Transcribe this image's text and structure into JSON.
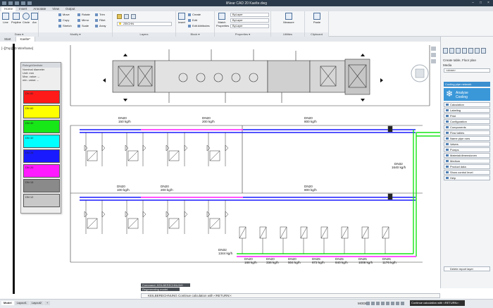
{
  "app": {
    "title": "liNear CAD 20   Kaelte.dwg"
  },
  "menu_tabs": [
    "Home",
    "Insert",
    "Annotate",
    "View",
    "Output"
  ],
  "ribbon": {
    "draw": {
      "group_label": "Draw ▾",
      "line": "Line",
      "polyline": "Polyline",
      "circle": "Circle",
      "arc": "Arc"
    },
    "modify": {
      "group_label": "Modify ▾",
      "move": "Move",
      "copy": "Copy",
      "stretch": "Stretch",
      "rotate": "Rotate",
      "mirror": "Mirror",
      "scale": "Scale",
      "trim": "Trim",
      "fillet": "Fillet",
      "array": "Array"
    },
    "layers": {
      "group_label": "Layers",
      "current_layer": "ZEICHN"
    },
    "block": {
      "group_label": "Block ▾",
      "insert": "Insert",
      "create": "Create",
      "edit": "Edit",
      "edit_attributes": "Edit Attributes"
    },
    "properties": {
      "group_label": "Properties ▾",
      "match": "Match Properties",
      "color": "ByLayer",
      "linetype": "ByLayer",
      "lineweight": "ByLayer"
    },
    "utilities": {
      "group_label": "Utilities",
      "measure": "Measure"
    },
    "clipboard": {
      "group_label": "Clipboard",
      "paste": "Paste"
    }
  },
  "doc_tabs": [
    "Start",
    "Kaelte*"
  ],
  "viewport_label": "[−][Top][2D Wireframe]",
  "legend": {
    "header": "Rohrgrößenliste",
    "nominal_label": "Nominal diameter",
    "unit_label": "Unit: mm",
    "max_label": "Max. value: –",
    "min_label": "min. value: –",
    "entries": [
      {
        "name": "DN 80",
        "color": "#ff1a1a"
      },
      {
        "name": "DN 60",
        "color": "#ffff00"
      },
      {
        "name": "DN 40",
        "color": "#17e617"
      },
      {
        "name": "DN 32",
        "color": "#00ffff"
      },
      {
        "name": "DN 25",
        "color": "#1a1aff"
      },
      {
        "name": "DN 20",
        "color": "#ff1aff"
      },
      {
        "name": "DN 15",
        "color": "#8a8a8a"
      },
      {
        "name": "DN 12",
        "color": "#c8c8c8"
      }
    ]
  },
  "schematic_labels": {
    "top": [
      {
        "dn": "DN20",
        "flow": "150 kg/h"
      },
      {
        "dn": "DN20",
        "flow": "200 kg/h"
      },
      {
        "dn": "DN20",
        "flow": "800 kg/h"
      }
    ],
    "mid": [
      {
        "dn": "DN20",
        "flow": "100 kg/h"
      },
      {
        "dn": "DN20",
        "flow": "200 kg/h"
      },
      {
        "dn": "DN20",
        "flow": "800 kg/h"
      }
    ],
    "right": {
      "dn": "DN32",
      "flow": "1640 kg/h"
    },
    "bottom_left": {
      "dn": "DN32",
      "flow": "1344 kg/h"
    },
    "bottom": [
      {
        "dn": "DN20",
        "flow": "168 kg/h"
      },
      {
        "dn": "DN20",
        "flow": "336 kg/h"
      },
      {
        "dn": "DN20",
        "flow": "504 kg/h"
      },
      {
        "dn": "DN25",
        "flow": "672 kg/h"
      },
      {
        "dn": "DN25",
        "flow": "840 kg/h"
      },
      {
        "dn": "DN25",
        "flow": "1008 kg/h"
      },
      {
        "dn": "DN25",
        "flow": "1176 kg/h"
      }
    ]
  },
  "right_panel": {
    "title": "Create table, Floor plan",
    "media_label": "Media",
    "media_value": "<close>",
    "accordion": "Cooling pipe network",
    "cooling_line1": "Analyse",
    "cooling_line2": "Cooling",
    "items": [
      "Calculation",
      "Labeling",
      "Print",
      "Configuration",
      "Components",
      "Flow tables",
      "Name pipe runs",
      "Valves",
      "Pumps",
      "Material/dimensionen",
      "Medium",
      "Product data",
      "Show control level",
      "Help"
    ],
    "delete_report": "Delete report layer"
  },
  "command": {
    "history1": "Command: KEILBERECHNUNG",
    "history2": "Regenerating model.",
    "prompt": "KEILBERECHNUNG Continue calculation with <RETURN>:"
  },
  "status": {
    "layout_tabs": [
      "Model",
      "Layout1",
      "Layout2",
      "+"
    ],
    "mode": "MODEL",
    "tooltip": "Continue calculation with <RETURN>:"
  }
}
